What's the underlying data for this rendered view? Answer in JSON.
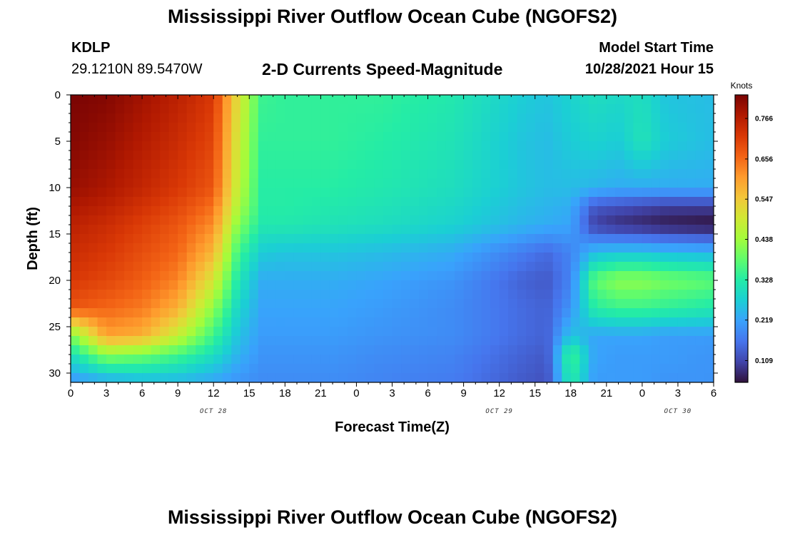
{
  "title": "Mississippi River Outflow Ocean Cube (NGOFS2)",
  "station": {
    "id": "KDLP",
    "coords": "29.1210N  89.5470W"
  },
  "subtitle": "2-D Currents Speed-Magnitude",
  "model_start": {
    "label": "Model Start Time",
    "value": "10/28/2021 Hour 15"
  },
  "footer_title": "Mississippi River Outflow Ocean Cube (NGOFS2)",
  "colors": {
    "colormap": [
      "#30123b",
      "#4145ab",
      "#4675ed",
      "#39a2fc",
      "#1bcfd4",
      "#24eca6",
      "#61fc6c",
      "#a4fc3b",
      "#d1e834",
      "#f3c63a",
      "#fe9b2d",
      "#f36315",
      "#d93806",
      "#b11901",
      "#7a0403"
    ]
  },
  "chart_data": {
    "type": "heatmap",
    "xlabel": "Forecast Time(Z)",
    "ylabel": "Depth (ft)",
    "x_tick_labels": [
      "0",
      "3",
      "6",
      "9",
      "12",
      "15",
      "18",
      "21",
      "0",
      "3",
      "6",
      "9",
      "12",
      "15",
      "18",
      "21",
      "0",
      "3",
      "6"
    ],
    "x_date_labels": [
      {
        "label": "OCT 28",
        "at_index": 4
      },
      {
        "label": "OCT 29",
        "at_index": 12
      },
      {
        "label": "OCT 30",
        "at_index": 17
      }
    ],
    "x_range_hours": [
      0,
      54
    ],
    "y_ticks": [
      0,
      5,
      10,
      15,
      20,
      25,
      30
    ],
    "y_range_ft": [
      0,
      31
    ],
    "y_inverted": true,
    "colorbar": {
      "title": "Knots",
      "ticks": [
        0.109,
        0.219,
        0.328,
        0.438,
        0.547,
        0.656,
        0.766
      ],
      "range": [
        0.05,
        0.83
      ]
    },
    "grid": false,
    "depth_levels_ft": [
      0,
      5,
      10,
      12,
      14,
      17,
      20,
      23,
      26,
      28,
      31
    ],
    "times_hours": [
      0,
      3,
      6,
      9,
      12,
      14,
      16,
      18,
      22,
      26,
      32,
      38,
      40,
      42,
      44,
      46,
      48,
      50,
      54
    ],
    "speed_knots": [
      [
        0.83,
        0.82,
        0.79,
        0.76,
        0.72,
        0.52,
        0.35,
        0.34,
        0.34,
        0.34,
        0.32,
        0.27,
        0.26,
        0.28,
        0.3,
        0.29,
        0.3,
        0.26,
        0.25
      ],
      [
        0.82,
        0.8,
        0.77,
        0.74,
        0.7,
        0.5,
        0.34,
        0.34,
        0.34,
        0.33,
        0.31,
        0.26,
        0.25,
        0.27,
        0.28,
        0.27,
        0.31,
        0.27,
        0.25
      ],
      [
        0.8,
        0.78,
        0.75,
        0.72,
        0.68,
        0.48,
        0.33,
        0.33,
        0.33,
        0.32,
        0.3,
        0.26,
        0.25,
        0.25,
        0.24,
        0.23,
        0.23,
        0.23,
        0.23
      ],
      [
        0.78,
        0.76,
        0.73,
        0.7,
        0.65,
        0.46,
        0.33,
        0.33,
        0.32,
        0.31,
        0.29,
        0.25,
        0.24,
        0.23,
        0.13,
        0.12,
        0.11,
        0.1,
        0.1
      ],
      [
        0.76,
        0.74,
        0.71,
        0.68,
        0.62,
        0.42,
        0.32,
        0.32,
        0.31,
        0.3,
        0.28,
        0.24,
        0.23,
        0.22,
        0.1,
        0.08,
        0.07,
        0.06,
        0.05
      ],
      [
        0.74,
        0.72,
        0.69,
        0.66,
        0.57,
        0.36,
        0.27,
        0.26,
        0.26,
        0.25,
        0.23,
        0.17,
        0.15,
        0.18,
        0.25,
        0.26,
        0.26,
        0.25,
        0.24
      ],
      [
        0.72,
        0.7,
        0.67,
        0.63,
        0.5,
        0.32,
        0.23,
        0.23,
        0.23,
        0.22,
        0.2,
        0.14,
        0.13,
        0.18,
        0.38,
        0.42,
        0.42,
        0.4,
        0.38
      ],
      [
        0.68,
        0.66,
        0.64,
        0.58,
        0.42,
        0.29,
        0.22,
        0.22,
        0.22,
        0.21,
        0.19,
        0.15,
        0.14,
        0.2,
        0.33,
        0.35,
        0.35,
        0.34,
        0.32
      ],
      [
        0.4,
        0.6,
        0.58,
        0.48,
        0.35,
        0.26,
        0.21,
        0.21,
        0.21,
        0.2,
        0.19,
        0.15,
        0.14,
        0.26,
        0.22,
        0.22,
        0.22,
        0.21,
        0.21
      ],
      [
        0.3,
        0.42,
        0.4,
        0.36,
        0.3,
        0.24,
        0.2,
        0.2,
        0.2,
        0.19,
        0.18,
        0.14,
        0.13,
        0.36,
        0.22,
        0.21,
        0.21,
        0.21,
        0.2
      ],
      [
        0.2,
        0.22,
        0.24,
        0.24,
        0.22,
        0.2,
        0.19,
        0.19,
        0.19,
        0.18,
        0.17,
        0.13,
        0.12,
        0.33,
        0.21,
        0.21,
        0.21,
        0.2,
        0.2
      ]
    ]
  }
}
